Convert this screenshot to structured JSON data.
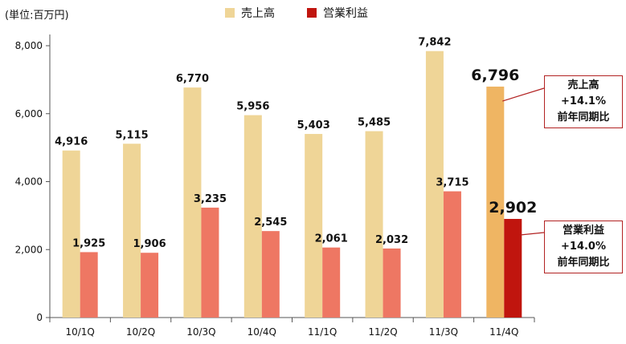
{
  "unit_label": "(単位:百万円)",
  "legend": [
    {
      "label": "売上高",
      "color": "#efd597"
    },
    {
      "label": "営業利益",
      "color": "#c0150e"
    }
  ],
  "callouts": {
    "sales": {
      "line1": "売上高",
      "line2": "+14.1%",
      "line3": "前年同期比"
    },
    "profit": {
      "line1": "営業利益",
      "line2": "+14.0%",
      "line3": "前年同期比"
    }
  },
  "colors": {
    "sales": "#efd597",
    "profit": "#ee7763",
    "sales_highlight": "#efb563",
    "profit_highlight": "#c0150e",
    "axis": "#555555"
  },
  "chart_data": {
    "type": "bar",
    "categories": [
      "10/1Q",
      "10/2Q",
      "10/3Q",
      "10/4Q",
      "11/1Q",
      "11/2Q",
      "11/3Q",
      "11/4Q"
    ],
    "series": [
      {
        "name": "売上高",
        "values": [
          4916,
          5115,
          6770,
          5956,
          5403,
          5485,
          7842,
          6796
        ],
        "labels": [
          "4,916",
          "5,115",
          "6,770",
          "5,956",
          "5,403",
          "5,485",
          "7,842",
          "6,796"
        ]
      },
      {
        "name": "営業利益",
        "values": [
          1925,
          1906,
          3235,
          2545,
          2061,
          2032,
          3715,
          2902
        ],
        "labels": [
          "1,925",
          "1,906",
          "3,235",
          "2,545",
          "2,061",
          "2,032",
          "3,715",
          "2,902"
        ]
      }
    ],
    "highlight_index": 7,
    "ylim": [
      0,
      8000
    ],
    "yticks": [
      0,
      2000,
      4000,
      6000,
      8000
    ],
    "ytick_labels": [
      "0",
      "2,000",
      "4,000",
      "6,000",
      "8,000"
    ],
    "grid": false,
    "legend_position": "top"
  }
}
